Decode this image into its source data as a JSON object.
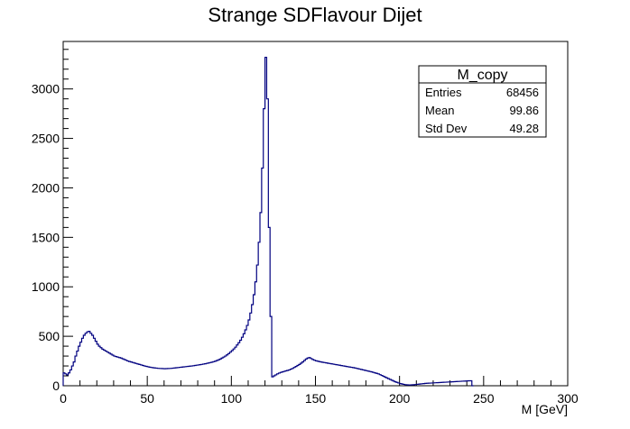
{
  "chart_data": {
    "type": "histogram",
    "title": "Strange SDFlavour Dijet",
    "xlabel": "M [GeV]",
    "ylabel": "",
    "xlim": [
      0,
      300
    ],
    "ylim": [
      0,
      3480
    ],
    "x_ticks": [
      0,
      50,
      100,
      150,
      200,
      250,
      300
    ],
    "y_ticks": [
      0,
      500,
      1000,
      1500,
      2000,
      2500,
      3000
    ],
    "grid": false,
    "legend": "none",
    "line_color": "#000080",
    "bin_width": 1,
    "x_start": 0,
    "values": [
      130,
      120,
      110,
      130,
      160,
      200,
      240,
      300,
      350,
      400,
      440,
      480,
      510,
      530,
      545,
      550,
      530,
      510,
      480,
      450,
      420,
      400,
      385,
      370,
      360,
      350,
      340,
      330,
      320,
      310,
      300,
      295,
      290,
      285,
      280,
      272,
      265,
      258,
      250,
      245,
      240,
      235,
      230,
      225,
      220,
      215,
      210,
      205,
      200,
      196,
      192,
      188,
      185,
      182,
      180,
      178,
      176,
      175,
      174,
      173,
      172,
      173,
      174,
      175,
      176,
      178,
      180,
      182,
      184,
      186,
      188,
      190,
      192,
      194,
      196,
      198,
      200,
      202,
      205,
      208,
      210,
      213,
      216,
      219,
      222,
      226,
      230,
      234,
      238,
      243,
      248,
      255,
      262,
      270,
      280,
      290,
      300,
      312,
      325,
      340,
      355,
      372,
      390,
      412,
      435,
      460,
      490,
      525,
      565,
      610,
      665,
      735,
      820,
      920,
      1050,
      1220,
      1450,
      1750,
      2200,
      2800,
      3320,
      2900,
      1600,
      700,
      90,
      100,
      110,
      120,
      128,
      135,
      140,
      145,
      150,
      155,
      160,
      168,
      175,
      185,
      195,
      205,
      215,
      228,
      240,
      255,
      270,
      280,
      285,
      275,
      265,
      258,
      252,
      248,
      244,
      240,
      237,
      234,
      231,
      228,
      225,
      222,
      219,
      216,
      213,
      210,
      207,
      204,
      201,
      198,
      195,
      192,
      189,
      186,
      183,
      180,
      176,
      172,
      168,
      164,
      160,
      156,
      152,
      148,
      144,
      140,
      135,
      130,
      125,
      120,
      112,
      104,
      96,
      88,
      80,
      72,
      64,
      56,
      48,
      40,
      34,
      28,
      22,
      18,
      14,
      11,
      9,
      8,
      8,
      9,
      10,
      12,
      14,
      16,
      18,
      20,
      22,
      24,
      25,
      26,
      27,
      28,
      29,
      30,
      31,
      32,
      33,
      34,
      35,
      36,
      37,
      38,
      39,
      40,
      41,
      42,
      43,
      44,
      45,
      46,
      47,
      48,
      49,
      50,
      50,
      0
    ]
  },
  "stats_box": {
    "title": "M_copy",
    "rows": [
      {
        "label": "Entries",
        "value": "68456"
      },
      {
        "label": "Mean",
        "value": "99.86"
      },
      {
        "label": "Std Dev",
        "value": "49.28"
      }
    ]
  }
}
